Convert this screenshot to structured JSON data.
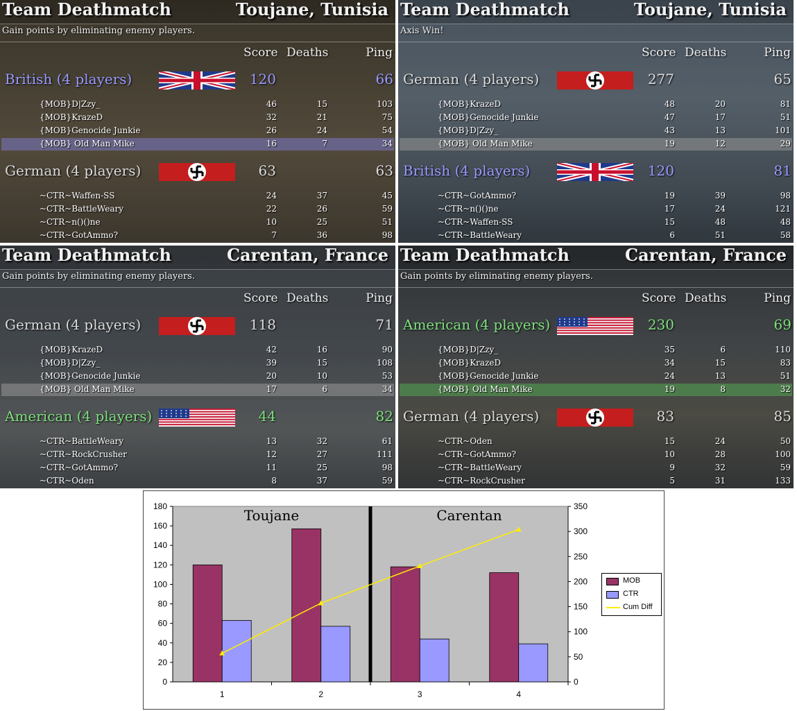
{
  "panels": [
    {
      "mode": "Team Deathmatch",
      "map": "Toujane, Tunisia",
      "subtitle": "Gain points by eliminating enemy players.",
      "cols": {
        "score": "Score",
        "deaths": "Deaths",
        "ping": "Ping"
      },
      "teams": [
        {
          "name": "British (4 players)",
          "flag": "uk",
          "score": "120",
          "ping": "66",
          "color": "brit",
          "players": [
            {
              "name": "{MOB}D|Zzy_",
              "score": "46",
              "deaths": "15",
              "ping": "103"
            },
            {
              "name": "{MOB}KrazeD",
              "score": "32",
              "deaths": "21",
              "ping": "75"
            },
            {
              "name": "{MOB}Genocide Junkie",
              "score": "26",
              "deaths": "24",
              "ping": "54"
            },
            {
              "name": "{MOB} Old Man Mike",
              "score": "16",
              "deaths": "7",
              "ping": "34",
              "hl": "hl"
            }
          ]
        },
        {
          "name": "German (4 players)",
          "flag": "de",
          "score": "63",
          "ping": "63",
          "color": "germ",
          "players": [
            {
              "name": "~CTR~Waffen-SS",
              "score": "24",
              "deaths": "37",
              "ping": "45"
            },
            {
              "name": "~CTR~BattleWeary",
              "score": "22",
              "deaths": "26",
              "ping": "59"
            },
            {
              "name": "~CTR~n()()ne",
              "score": "10",
              "deaths": "25",
              "ping": "51"
            },
            {
              "name": "~CTR~GotAmmo?",
              "score": "7",
              "deaths": "36",
              "ping": "98"
            }
          ]
        }
      ]
    },
    {
      "mode": "Team Deathmatch",
      "map": "Toujane, Tunisia",
      "subtitle": "Axis Win!",
      "cols": {
        "score": "Score",
        "deaths": "Deaths",
        "ping": "Ping"
      },
      "teams": [
        {
          "name": "German (4 players)",
          "flag": "de",
          "score": "277",
          "ping": "65",
          "color": "germ",
          "players": [
            {
              "name": "{MOB}KrazeD",
              "score": "48",
              "deaths": "20",
              "ping": "81"
            },
            {
              "name": "{MOB}Genocide Junkie",
              "score": "47",
              "deaths": "17",
              "ping": "51"
            },
            {
              "name": "{MOB}D|Zzy_",
              "score": "43",
              "deaths": "13",
              "ping": "101"
            },
            {
              "name": "{MOB} Old Man Mike",
              "score": "19",
              "deaths": "12",
              "ping": "29",
              "hl": "hlg"
            }
          ]
        },
        {
          "name": "British (4 players)",
          "flag": "uk",
          "score": "120",
          "ping": "81",
          "color": "brit",
          "players": [
            {
              "name": "~CTR~GotAmmo?",
              "score": "19",
              "deaths": "39",
              "ping": "98"
            },
            {
              "name": "~CTR~n()()ne",
              "score": "17",
              "deaths": "24",
              "ping": "121"
            },
            {
              "name": "~CTR~Waffen-SS",
              "score": "15",
              "deaths": "48",
              "ping": "48"
            },
            {
              "name": "~CTR~BattleWeary",
              "score": "6",
              "deaths": "51",
              "ping": "58"
            }
          ]
        }
      ]
    },
    {
      "mode": "Team Deathmatch",
      "map": "Carentan, France",
      "subtitle": "Gain points by eliminating enemy players.",
      "cols": {
        "score": "Score",
        "deaths": "Deaths",
        "ping": "Ping"
      },
      "teams": [
        {
          "name": "German (4 players)",
          "flag": "de",
          "score": "118",
          "ping": "71",
          "color": "germ",
          "players": [
            {
              "name": "{MOB}KrazeD",
              "score": "42",
              "deaths": "16",
              "ping": "90"
            },
            {
              "name": "{MOB}D|Zzy_",
              "score": "39",
              "deaths": "15",
              "ping": "108"
            },
            {
              "name": "{MOB}Genocide Junkie",
              "score": "20",
              "deaths": "10",
              "ping": "53"
            },
            {
              "name": "{MOB} Old Man Mike",
              "score": "17",
              "deaths": "6",
              "ping": "34",
              "hl": "hlg"
            }
          ]
        },
        {
          "name": "American (4 players)",
          "flag": "us",
          "score": "44",
          "ping": "82",
          "color": "amer",
          "players": [
            {
              "name": "~CTR~BattleWeary",
              "score": "13",
              "deaths": "32",
              "ping": "61"
            },
            {
              "name": "~CTR~RockCrusher",
              "score": "12",
              "deaths": "27",
              "ping": "111"
            },
            {
              "name": "~CTR~GotAmmo?",
              "score": "11",
              "deaths": "25",
              "ping": "98"
            },
            {
              "name": "~CTR~Oden",
              "score": "8",
              "deaths": "37",
              "ping": "59"
            }
          ]
        }
      ]
    },
    {
      "mode": "Team Deathmatch",
      "map": "Carentan, France",
      "subtitle": "Gain points by eliminating enemy players.",
      "cols": {
        "score": "Score",
        "deaths": "Deaths",
        "ping": "Ping"
      },
      "teams": [
        {
          "name": "American (4 players)",
          "flag": "us",
          "score": "230",
          "ping": "69",
          "color": "amer",
          "players": [
            {
              "name": "{MOB}D|Zzy_",
              "score": "35",
              "deaths": "6",
              "ping": "110"
            },
            {
              "name": "{MOB}KrazeD",
              "score": "34",
              "deaths": "15",
              "ping": "83"
            },
            {
              "name": "{MOB}Genocide Junkie",
              "score": "24",
              "deaths": "13",
              "ping": "51"
            },
            {
              "name": "{MOB} Old Man Mike",
              "score": "19",
              "deaths": "8",
              "ping": "32",
              "hl": "hlgreen"
            }
          ]
        },
        {
          "name": "German (4 players)",
          "flag": "de",
          "score": "83",
          "ping": "85",
          "color": "germ",
          "players": [
            {
              "name": "~CTR~Oden",
              "score": "15",
              "deaths": "24",
              "ping": "50"
            },
            {
              "name": "~CTR~GotAmmo?",
              "score": "10",
              "deaths": "28",
              "ping": "100"
            },
            {
              "name": "~CTR~BattleWeary",
              "score": "9",
              "deaths": "32",
              "ping": "59"
            },
            {
              "name": "~CTR~RockCrusher",
              "score": "5",
              "deaths": "31",
              "ping": "133"
            }
          ]
        }
      ]
    }
  ],
  "chart_data": {
    "type": "bar",
    "categories": [
      "1",
      "2",
      "3",
      "4"
    ],
    "series": [
      {
        "name": "MOB",
        "values": [
          120,
          157,
          118,
          112
        ],
        "color": "#993366"
      },
      {
        "name": "CTR",
        "values": [
          63,
          57,
          44,
          39
        ],
        "color": "#9999ff"
      },
      {
        "name": "Cum Diff",
        "values": [
          57,
          157,
          231,
          304
        ],
        "color": "#ffee00",
        "axis": "right",
        "kind": "line"
      }
    ],
    "ylim": [
      0,
      180
    ],
    "yticks": [
      0,
      20,
      40,
      60,
      80,
      100,
      120,
      140,
      160,
      180
    ],
    "y2lim": [
      0,
      350
    ],
    "y2ticks": [
      0,
      50,
      100,
      150,
      200,
      250,
      300,
      350
    ],
    "annotations": [
      "Toujane",
      "Carentan"
    ],
    "grid": false,
    "legend": "right"
  }
}
